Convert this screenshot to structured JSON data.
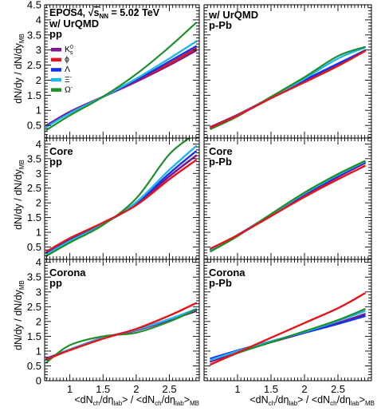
{
  "figure": {
    "ylabel_main": "dN/dy / dN/dy",
    "ylabel_sub": "MB",
    "xlabel": {
      "part1": "<dN",
      "sub1": "ch",
      "part2": "/dη",
      "sub2": "lab",
      "part3": "> / <dN",
      "sub3": "ch",
      "part4": "/dη",
      "sub4": "lab",
      "part5": ">",
      "sub5": "MB"
    },
    "header": {
      "prefix": "EPOS4, ",
      "sqrt_symbol": "√",
      "s_letter": "s",
      "s_sub": "NN",
      "suffix": " = 5.02 TeV"
    }
  },
  "legend": [
    {
      "label": "K",
      "sup": "0",
      "sub": "s",
      "color": "#7b1a8e"
    },
    {
      "label": "ϕ",
      "sup": "",
      "sub": "",
      "color": "#e3161b"
    },
    {
      "label": "Λ",
      "sup": "",
      "sub": "",
      "color": "#1432e6"
    },
    {
      "label": "Ξ",
      "sup": "-",
      "sub": "",
      "color": "#27b5f0"
    },
    {
      "label": "Ω",
      "sup": "-",
      "sub": "",
      "color": "#1f8f2a"
    }
  ],
  "chart_data": [
    {
      "type": "line",
      "panel": "top-left",
      "labels": [
        "w/ UrQMD",
        "pp"
      ],
      "xlim": [
        0.62,
        2.95
      ],
      "ylim": [
        0,
        4.5
      ],
      "yticks": [
        "0.5",
        "1",
        "1.5",
        "2",
        "2.5",
        "3",
        "3.5",
        "4",
        "4.5"
      ],
      "xticks": [],
      "series": [
        {
          "name": "K0s",
          "x": [
            0.65,
            1.0,
            1.5,
            2.0,
            2.5,
            2.9
          ],
          "y": [
            0.5,
            0.95,
            1.45,
            1.95,
            2.5,
            2.98
          ]
        },
        {
          "name": "phi",
          "x": [
            0.65,
            1.0,
            1.5,
            2.0,
            2.5,
            2.9
          ],
          "y": [
            0.48,
            0.93,
            1.45,
            1.98,
            2.55,
            3.05
          ]
        },
        {
          "name": "Lambda",
          "x": [
            0.65,
            1.0,
            1.5,
            2.0,
            2.5,
            2.9
          ],
          "y": [
            0.47,
            0.92,
            1.45,
            2.0,
            2.62,
            3.12
          ]
        },
        {
          "name": "Xi",
          "x": [
            0.65,
            1.0,
            1.5,
            2.0,
            2.5,
            2.9
          ],
          "y": [
            0.45,
            0.9,
            1.45,
            2.05,
            2.72,
            3.28
          ]
        },
        {
          "name": "Omega",
          "x": [
            0.65,
            1.0,
            1.5,
            2.0,
            2.5,
            2.9
          ],
          "y": [
            0.35,
            0.83,
            1.45,
            2.2,
            3.1,
            3.9
          ]
        }
      ]
    },
    {
      "type": "line",
      "panel": "top-right",
      "labels": [
        "w/ UrQMD",
        "p-Pb"
      ],
      "xlim": [
        0.5,
        3.0
      ],
      "ylim": [
        0,
        4.5
      ],
      "yticks": [],
      "xticks": [],
      "series": [
        {
          "name": "K0s",
          "x": [
            0.6,
            1.0,
            1.5,
            2.0,
            2.5,
            2.9
          ],
          "y": [
            0.45,
            0.85,
            1.42,
            1.95,
            2.5,
            2.98
          ]
        },
        {
          "name": "Lambda",
          "x": [
            0.6,
            1.0,
            1.5,
            2.0,
            2.5,
            2.9
          ],
          "y": [
            0.42,
            0.82,
            1.42,
            2.0,
            2.55,
            2.98
          ]
        },
        {
          "name": "Xi",
          "x": [
            0.6,
            1.0,
            1.5,
            2.0,
            2.5,
            2.9
          ],
          "y": [
            0.42,
            0.83,
            1.43,
            2.05,
            2.72,
            3.08
          ]
        },
        {
          "name": "Omega",
          "x": [
            0.6,
            1.0,
            1.5,
            2.0,
            2.5,
            2.9
          ],
          "y": [
            0.38,
            0.8,
            1.45,
            2.1,
            2.8,
            3.1
          ]
        },
        {
          "name": "phi",
          "x": [
            0.6,
            1.0,
            1.5,
            2.0,
            2.5,
            2.9
          ],
          "y": [
            0.43,
            0.83,
            1.4,
            1.93,
            2.47,
            2.96
          ]
        }
      ]
    },
    {
      "type": "line",
      "panel": "middle-left",
      "labels": [
        "Core",
        "pp"
      ],
      "xlim": [
        0.62,
        2.95
      ],
      "ylim": [
        0,
        4.5
      ],
      "yticks": [
        "0.5",
        "1",
        "1.5",
        "2",
        "2.5",
        "3",
        "3.5",
        "4"
      ],
      "xticks": [],
      "series": [
        {
          "name": "K0s",
          "x": [
            0.65,
            1.0,
            1.5,
            2.0,
            2.5,
            2.9
          ],
          "y": [
            0.3,
            0.75,
            1.3,
            1.95,
            2.9,
            3.6
          ]
        },
        {
          "name": "Lambda",
          "x": [
            0.65,
            1.0,
            1.5,
            2.0,
            2.5,
            2.9
          ],
          "y": [
            0.27,
            0.72,
            1.28,
            1.98,
            3.0,
            3.75
          ]
        },
        {
          "name": "Xi",
          "x": [
            0.65,
            1.0,
            1.5,
            2.0,
            2.5,
            2.9
          ],
          "y": [
            0.25,
            0.7,
            1.27,
            2.02,
            3.12,
            3.92
          ]
        },
        {
          "name": "Omega",
          "x": [
            0.65,
            1.0,
            1.5,
            2.0,
            2.5,
            2.9
          ],
          "y": [
            0.2,
            0.65,
            1.25,
            2.15,
            3.65,
            4.35
          ]
        },
        {
          "name": "phi",
          "x": [
            0.65,
            1.0,
            1.5,
            2.0,
            2.5,
            2.9
          ],
          "y": [
            0.35,
            0.8,
            1.33,
            1.92,
            2.8,
            3.45
          ]
        }
      ]
    },
    {
      "type": "line",
      "panel": "middle-right",
      "labels": [
        "Core",
        "p-Pb"
      ],
      "xlim": [
        0.5,
        3.0
      ],
      "ylim": [
        0,
        4.5
      ],
      "yticks": [],
      "xticks": [],
      "series": [
        {
          "name": "K0s",
          "x": [
            0.6,
            1.0,
            1.5,
            2.0,
            2.5,
            2.9
          ],
          "y": [
            0.42,
            0.9,
            1.58,
            2.25,
            2.88,
            3.35
          ]
        },
        {
          "name": "Lambda",
          "x": [
            0.6,
            1.0,
            1.5,
            2.0,
            2.5,
            2.9
          ],
          "y": [
            0.4,
            0.9,
            1.6,
            2.3,
            2.92,
            3.38
          ]
        },
        {
          "name": "Xi",
          "x": [
            0.6,
            1.0,
            1.5,
            2.0,
            2.5,
            2.9
          ],
          "y": [
            0.38,
            0.88,
            1.6,
            2.32,
            2.95,
            3.4
          ]
        },
        {
          "name": "Omega",
          "x": [
            0.6,
            1.0,
            1.5,
            2.0,
            2.5,
            2.9
          ],
          "y": [
            0.35,
            0.87,
            1.62,
            2.35,
            2.98,
            3.42
          ]
        },
        {
          "name": "phi",
          "x": [
            0.6,
            1.0,
            1.5,
            2.0,
            2.5,
            2.9
          ],
          "y": [
            0.45,
            0.9,
            1.55,
            2.2,
            2.8,
            3.25
          ]
        }
      ]
    },
    {
      "type": "line",
      "panel": "bottom-left",
      "labels": [
        "Corona",
        "pp"
      ],
      "xlim": [
        0.62,
        2.95
      ],
      "ylim": [
        0,
        4.5
      ],
      "yticks": [
        "0",
        "0.5",
        "1",
        "1.5",
        "2",
        "2.5",
        "3",
        "3.5",
        "4"
      ],
      "xticks": [
        "1",
        "1.5",
        "2",
        "2.5"
      ],
      "series": [
        {
          "name": "K0s",
          "x": [
            0.65,
            1.0,
            1.5,
            2.0,
            2.5,
            2.9
          ],
          "y": [
            0.75,
            1.05,
            1.45,
            1.7,
            2.05,
            2.35
          ]
        },
        {
          "name": "Lambda",
          "x": [
            0.65,
            1.0,
            1.5,
            2.0,
            2.5,
            2.9
          ],
          "y": [
            0.73,
            1.05,
            1.45,
            1.72,
            2.08,
            2.4
          ]
        },
        {
          "name": "Xi",
          "x": [
            0.65,
            1.0,
            1.5,
            2.0,
            2.5,
            2.9
          ],
          "y": [
            0.72,
            1.05,
            1.45,
            1.72,
            2.08,
            2.42
          ]
        },
        {
          "name": "Omega",
          "x": [
            0.65,
            1.0,
            1.5,
            2.0,
            2.5,
            2.9
          ],
          "y": [
            0.62,
            1.2,
            1.5,
            1.62,
            2.0,
            2.4
          ]
        },
        {
          "name": "phi",
          "x": [
            0.65,
            1.0,
            1.5,
            2.0,
            2.5,
            2.9
          ],
          "y": [
            0.72,
            1.03,
            1.42,
            1.75,
            2.2,
            2.62
          ]
        }
      ]
    },
    {
      "type": "line",
      "panel": "bottom-right",
      "labels": [
        "Corona",
        "p-Pb"
      ],
      "xlim": [
        0.5,
        3.0
      ],
      "ylim": [
        0,
        4.5
      ],
      "yticks": [],
      "xticks": [
        "1",
        "1.5",
        "2",
        "2.5"
      ],
      "series": [
        {
          "name": "K0s",
          "x": [
            0.6,
            1.0,
            1.5,
            2.0,
            2.5,
            2.9
          ],
          "y": [
            0.65,
            0.95,
            1.3,
            1.62,
            1.95,
            2.25
          ]
        },
        {
          "name": "Lambda",
          "x": [
            0.6,
            1.0,
            1.5,
            2.0,
            2.5,
            2.9
          ],
          "y": [
            0.75,
            1.02,
            1.33,
            1.62,
            1.92,
            2.18
          ]
        },
        {
          "name": "Xi",
          "x": [
            0.6,
            1.0,
            1.5,
            2.0,
            2.5,
            2.9
          ],
          "y": [
            0.7,
            1.0,
            1.33,
            1.65,
            2.02,
            2.35
          ]
        },
        {
          "name": "Omega",
          "x": [
            0.6,
            1.0,
            1.5,
            2.0,
            2.5,
            2.9
          ],
          "y": [
            0.55,
            0.93,
            1.3,
            1.67,
            2.05,
            2.42
          ]
        },
        {
          "name": "phi",
          "x": [
            0.6,
            1.0,
            1.5,
            2.0,
            2.5,
            2.9
          ],
          "y": [
            0.55,
            0.95,
            1.45,
            1.95,
            2.45,
            2.95
          ]
        }
      ]
    }
  ]
}
